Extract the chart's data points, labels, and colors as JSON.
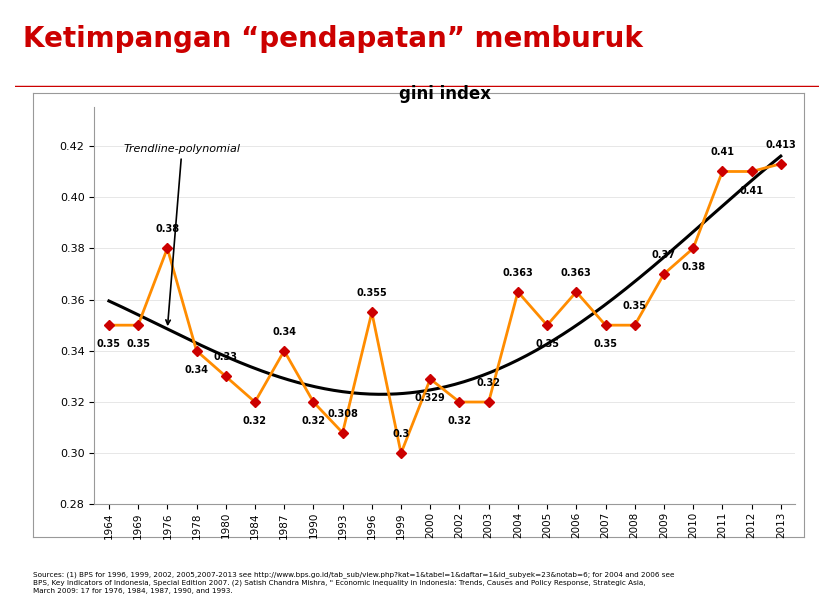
{
  "title_main": "Ketimpangan “pendapatan” memburuk",
  "chart_title": "gini index",
  "years": [
    1964,
    1969,
    1976,
    1978,
    1980,
    1984,
    1987,
    1990,
    1993,
    1996,
    1999,
    2000,
    2002,
    2003,
    2004,
    2005,
    2006,
    2007,
    2008,
    2009,
    2010,
    2011,
    2012,
    2013
  ],
  "values": [
    0.35,
    0.35,
    0.38,
    0.34,
    0.33,
    0.32,
    0.34,
    0.32,
    0.308,
    0.355,
    0.3,
    0.329,
    0.32,
    0.32,
    0.363,
    0.35,
    0.363,
    0.35,
    0.35,
    0.37,
    0.38,
    0.41,
    0.41,
    0.413
  ],
  "line_color": "#FF8C00",
  "marker_color": "#CC0000",
  "trend_color": "#000000",
  "ylim": [
    0.28,
    0.435
  ],
  "yticks": [
    0.28,
    0.3,
    0.32,
    0.34,
    0.36,
    0.38,
    0.4,
    0.42
  ],
  "title_color": "#CC0000",
  "bar_color": "#CC0000",
  "annotation_label": "Trendline-polynomial",
  "source_text": "Sources: (1) BPS for 1996, 1999, 2002, 2005,2007-2013 see http://www.bps.go.id/tab_sub/view.php?kat=1&tabel=1&daftar=1&id_subyek=23&notab=6; for 2004 and 2006 see\nBPS, Key Indicators of Indonesia, Special Edition 2007. (2) Satish Chandra Mishra, \" Economic Inequality in Indonesia: Trends, Causes and Policy Response, Strategic Asia,\nMarch 2009: 17 for 1976, 1984, 1987, 1990, and 1993.",
  "label_data": [
    [
      0,
      0.35,
      "top"
    ],
    [
      1,
      0.35,
      "top"
    ],
    [
      2,
      0.38,
      "bottom"
    ],
    [
      3,
      0.34,
      "top"
    ],
    [
      4,
      0.33,
      "bottom"
    ],
    [
      5,
      0.32,
      "top"
    ],
    [
      6,
      0.34,
      "bottom"
    ],
    [
      7,
      0.32,
      "top"
    ],
    [
      8,
      0.308,
      "bottom"
    ],
    [
      9,
      0.355,
      "bottom"
    ],
    [
      10,
      0.3,
      "bottom"
    ],
    [
      11,
      0.329,
      "top"
    ],
    [
      12,
      0.32,
      "top"
    ],
    [
      13,
      0.32,
      "bottom"
    ],
    [
      14,
      0.363,
      "bottom"
    ],
    [
      15,
      0.35,
      "top"
    ],
    [
      16,
      0.363,
      "bottom"
    ],
    [
      17,
      0.35,
      "top"
    ],
    [
      18,
      0.35,
      "bottom"
    ],
    [
      19,
      0.37,
      "bottom"
    ],
    [
      20,
      0.38,
      "top"
    ],
    [
      21,
      0.41,
      "bottom"
    ],
    [
      22,
      0.41,
      "top"
    ],
    [
      23,
      0.413,
      "bottom"
    ]
  ]
}
